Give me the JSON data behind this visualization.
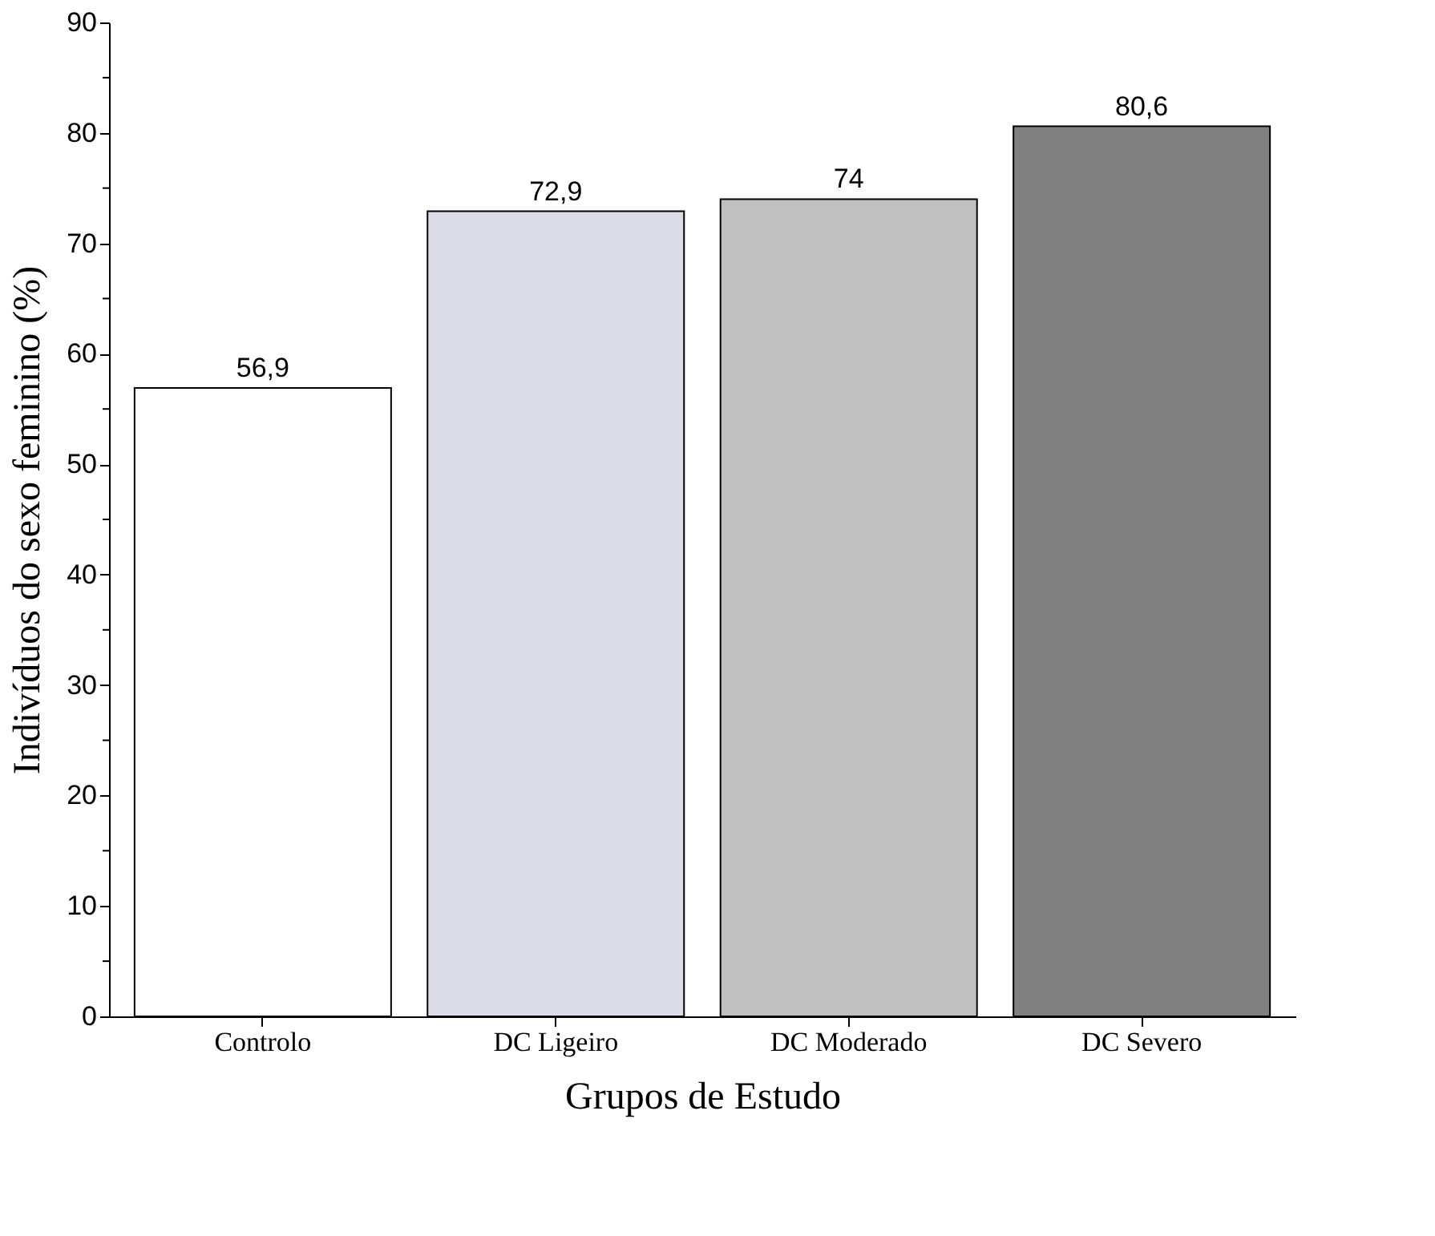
{
  "chart_data": {
    "type": "bar",
    "xlabel": "Grupos de Estudo",
    "ylabel": "Indivíduos do sexo feminino (%)",
    "categories": [
      "Controlo",
      "DC Ligeiro",
      "DC Moderado",
      "DC Severo"
    ],
    "values": [
      56.9,
      72.9,
      74,
      80.6
    ],
    "colors": [
      "#ffffff",
      "#dcdce8",
      "#c0c0c0",
      "#808080"
    ],
    "value_labels": [
      "56,9",
      "72,9",
      "74",
      "80,6"
    ],
    "ylim": [
      0,
      90
    ],
    "yticks": [
      0,
      {
        "value": 5,
        "label": null
      },
      10,
      {
        "value": 15,
        "label": null
      },
      20,
      {
        "value": 25,
        "label": null
      },
      30,
      {
        "value": 35,
        "label": null
      },
      40,
      {
        "value": 45,
        "label": null
      },
      50,
      {
        "value": 55,
        "label": null
      },
      60,
      {
        "value": 65,
        "label": null
      },
      70,
      {
        "value": 75,
        "label": null
      },
      80,
      {
        "value": 85,
        "label": null
      },
      90
    ],
    "grid": false
  }
}
